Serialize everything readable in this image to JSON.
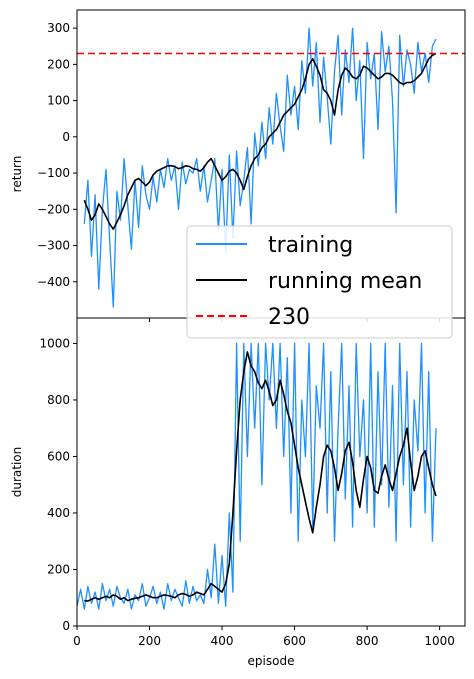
{
  "chart_data": [
    {
      "type": "line",
      "ylabel": "return",
      "xlabel": "",
      "xlim": [
        0,
        1070
      ],
      "ylim": [
        -500,
        350
      ],
      "xticks": [
        0,
        200,
        400,
        600,
        800,
        1000
      ],
      "yticks": [
        -400,
        -300,
        -200,
        -100,
        0,
        100,
        200,
        300
      ],
      "legend_position": "lower-right",
      "series": [
        {
          "name": "training",
          "color": "#1e90ff",
          "x": [
            20,
            30,
            40,
            50,
            60,
            70,
            80,
            90,
            100,
            110,
            120,
            130,
            140,
            150,
            160,
            170,
            180,
            190,
            200,
            210,
            220,
            230,
            240,
            250,
            260,
            270,
            280,
            290,
            300,
            310,
            320,
            330,
            340,
            350,
            360,
            370,
            380,
            390,
            400,
            410,
            420,
            430,
            440,
            450,
            460,
            470,
            480,
            490,
            500,
            510,
            520,
            530,
            540,
            550,
            560,
            570,
            580,
            590,
            600,
            610,
            620,
            630,
            640,
            650,
            660,
            670,
            680,
            690,
            700,
            710,
            720,
            730,
            740,
            750,
            760,
            770,
            780,
            790,
            800,
            810,
            820,
            830,
            840,
            850,
            860,
            870,
            880,
            890,
            900,
            910,
            920,
            930,
            940,
            950,
            960,
            970,
            980,
            990
          ],
          "y": [
            -240,
            -120,
            -330,
            -160,
            -420,
            -200,
            -90,
            -280,
            -470,
            -150,
            -230,
            -60,
            -190,
            -310,
            -120,
            -250,
            -80,
            -160,
            -200,
            -110,
            -180,
            -90,
            -140,
            -60,
            -120,
            -80,
            -200,
            -70,
            -130,
            -90,
            -100,
            -60,
            -150,
            -80,
            -180,
            -120,
            -60,
            -260,
            -90,
            -320,
            -50,
            -280,
            -40,
            -190,
            -120,
            -30,
            -240,
            10,
            -80,
            40,
            -60,
            80,
            -20,
            120,
            30,
            -40,
            170,
            60,
            140,
            20,
            210,
            120,
            300,
            140,
            260,
            40,
            220,
            110,
            -20,
            180,
            280,
            60,
            240,
            150,
            300,
            100,
            210,
            -60,
            260,
            160,
            230,
            20,
            290,
            180,
            250,
            100,
            -210,
            280,
            140,
            240,
            200,
            120,
            260,
            180,
            230,
            150,
            250,
            270
          ]
        },
        {
          "name": "running mean",
          "color": "#000000",
          "x": [
            20,
            30,
            40,
            50,
            60,
            70,
            80,
            90,
            100,
            110,
            120,
            130,
            140,
            150,
            160,
            170,
            180,
            190,
            200,
            210,
            220,
            230,
            240,
            250,
            260,
            270,
            280,
            290,
            300,
            310,
            320,
            330,
            340,
            350,
            360,
            370,
            380,
            390,
            400,
            410,
            420,
            430,
            440,
            450,
            460,
            470,
            480,
            490,
            500,
            510,
            520,
            530,
            540,
            550,
            560,
            570,
            580,
            590,
            600,
            610,
            620,
            630,
            640,
            650,
            660,
            670,
            680,
            690,
            700,
            710,
            720,
            730,
            740,
            750,
            760,
            770,
            780,
            790,
            800,
            810,
            820,
            830,
            840,
            850,
            860,
            870,
            880,
            890,
            900,
            910,
            920,
            930,
            940,
            950,
            960,
            970,
            980,
            990
          ],
          "y": [
            -175,
            -200,
            -230,
            -215,
            -185,
            -200,
            -220,
            -240,
            -255,
            -235,
            -215,
            -190,
            -160,
            -140,
            -120,
            -115,
            -125,
            -135,
            -125,
            -105,
            -95,
            -90,
            -85,
            -80,
            -80,
            -82,
            -88,
            -85,
            -80,
            -82,
            -88,
            -90,
            -95,
            -85,
            -70,
            -60,
            -80,
            -100,
            -120,
            -110,
            -95,
            -90,
            -100,
            -120,
            -145,
            -110,
            -80,
            -60,
            -50,
            -30,
            -20,
            0,
            10,
            20,
            40,
            60,
            70,
            80,
            90,
            110,
            130,
            160,
            200,
            215,
            195,
            170,
            130,
            120,
            100,
            60,
            130,
            170,
            190,
            180,
            165,
            160,
            170,
            195,
            190,
            180,
            170,
            160,
            165,
            175,
            175,
            170,
            160,
            150,
            145,
            150,
            150,
            155,
            165,
            175,
            195,
            215,
            225,
            230
          ]
        },
        {
          "name": "230",
          "color": "#ff0000",
          "style": "dashed",
          "x": [
            0,
            1070
          ],
          "y": [
            230,
            230
          ]
        }
      ]
    },
    {
      "type": "line",
      "ylabel": "duration",
      "xlabel": "episode",
      "xlim": [
        0,
        1070
      ],
      "ylim": [
        0,
        1090
      ],
      "xticks": [
        0,
        200,
        400,
        600,
        800,
        1000
      ],
      "yticks": [
        0,
        200,
        400,
        600,
        800,
        1000
      ],
      "series": [
        {
          "name": "training",
          "color": "#1e90ff",
          "x": [
            0,
            10,
            20,
            30,
            40,
            50,
            60,
            70,
            80,
            90,
            100,
            110,
            120,
            130,
            140,
            150,
            160,
            170,
            180,
            190,
            200,
            210,
            220,
            230,
            240,
            250,
            260,
            270,
            280,
            290,
            300,
            310,
            320,
            330,
            340,
            350,
            360,
            370,
            380,
            390,
            400,
            410,
            420,
            430,
            440,
            450,
            460,
            470,
            480,
            490,
            500,
            510,
            520,
            530,
            540,
            550,
            560,
            570,
            580,
            590,
            600,
            610,
            620,
            630,
            640,
            650,
            660,
            670,
            680,
            690,
            700,
            710,
            720,
            730,
            740,
            750,
            760,
            770,
            780,
            790,
            800,
            810,
            820,
            830,
            840,
            850,
            860,
            870,
            880,
            890,
            900,
            910,
            920,
            930,
            940,
            950,
            960,
            970,
            980,
            990
          ],
          "y": [
            70,
            130,
            60,
            140,
            80,
            120,
            60,
            150,
            90,
            130,
            70,
            140,
            100,
            80,
            130,
            60,
            110,
            90,
            150,
            70,
            100,
            140,
            80,
            120,
            60,
            150,
            90,
            130,
            100,
            70,
            160,
            80,
            140,
            90,
            110,
            80,
            200,
            100,
            290,
            80,
            250,
            70,
            400,
            120,
            1000,
            300,
            1000,
            600,
            1000,
            700,
            1000,
            500,
            1000,
            800,
            1000,
            700,
            1000,
            600,
            950,
            400,
            1000,
            300,
            800,
            600,
            1000,
            350,
            850,
            700,
            1000,
            400,
            900,
            300,
            700,
            1000,
            450,
            850,
            350,
            1000,
            600,
            800,
            400,
            1000,
            350,
            900,
            500,
            1000,
            420,
            850,
            300,
            1000,
            500,
            900,
            350,
            800,
            620,
            1000,
            400,
            900,
            300,
            700
          ]
        },
        {
          "name": "running mean",
          "color": "#000000",
          "x": [
            20,
            30,
            40,
            50,
            60,
            70,
            80,
            90,
            100,
            110,
            120,
            130,
            140,
            150,
            160,
            170,
            180,
            190,
            200,
            210,
            220,
            230,
            240,
            250,
            260,
            270,
            280,
            290,
            300,
            310,
            320,
            330,
            340,
            350,
            360,
            370,
            380,
            390,
            400,
            410,
            420,
            430,
            440,
            450,
            460,
            470,
            480,
            490,
            500,
            510,
            520,
            530,
            540,
            550,
            560,
            570,
            580,
            590,
            600,
            610,
            620,
            630,
            640,
            650,
            660,
            670,
            680,
            690,
            700,
            710,
            720,
            730,
            740,
            750,
            760,
            770,
            780,
            790,
            800,
            810,
            820,
            830,
            840,
            850,
            860,
            870,
            880,
            890,
            900,
            910,
            920,
            930,
            940,
            950,
            960,
            970,
            980,
            990
          ],
          "y": [
            90,
            88,
            95,
            100,
            95,
            100,
            105,
            100,
            110,
            105,
            95,
            100,
            90,
            95,
            98,
            100,
            105,
            110,
            105,
            100,
            100,
            105,
            110,
            108,
            105,
            100,
            110,
            115,
            112,
            105,
            110,
            120,
            115,
            110,
            130,
            150,
            140,
            130,
            120,
            150,
            220,
            400,
            620,
            800,
            900,
            970,
            920,
            900,
            860,
            840,
            870,
            830,
            780,
            800,
            870,
            820,
            760,
            720,
            640,
            560,
            500,
            440,
            380,
            330,
            420,
            500,
            600,
            640,
            620,
            560,
            480,
            540,
            620,
            650,
            580,
            480,
            420,
            520,
            600,
            560,
            480,
            470,
            530,
            570,
            520,
            480,
            540,
            600,
            640,
            700,
            580,
            480,
            530,
            600,
            620,
            560,
            500,
            460
          ]
        }
      ]
    }
  ],
  "legend": {
    "entries": [
      {
        "label": "training",
        "color": "#1e90ff",
        "style": "solid"
      },
      {
        "label": "running mean",
        "color": "#000000",
        "style": "solid"
      },
      {
        "label": "230",
        "color": "#ff0000",
        "style": "dashed"
      }
    ]
  }
}
